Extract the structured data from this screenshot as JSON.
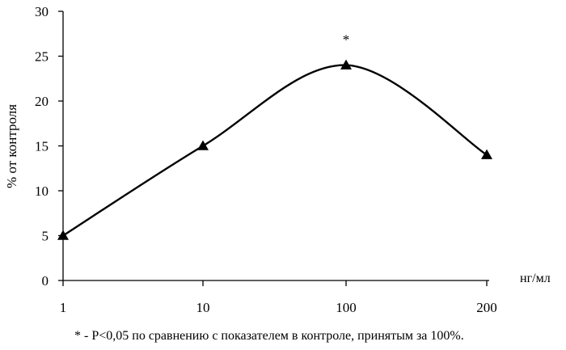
{
  "chart_data": {
    "type": "line",
    "categories": [
      "1",
      "10",
      "100",
      "200"
    ],
    "series": [
      {
        "values": [
          5,
          15,
          24,
          14
        ]
      }
    ],
    "ylabel": "% от контроля",
    "xlabel": "нг/мл",
    "ylim": [
      0,
      30
    ],
    "yticks": [
      0,
      5,
      10,
      15,
      20,
      25,
      30
    ],
    "annotations": [
      {
        "category": "100",
        "text": "*"
      }
    ],
    "footnote": "* - P<0,05 по сравнению с показателем в контроле, принятым за 100%.",
    "grid": false,
    "smooth": true,
    "marker": "triangle",
    "line_color": "#000000"
  }
}
